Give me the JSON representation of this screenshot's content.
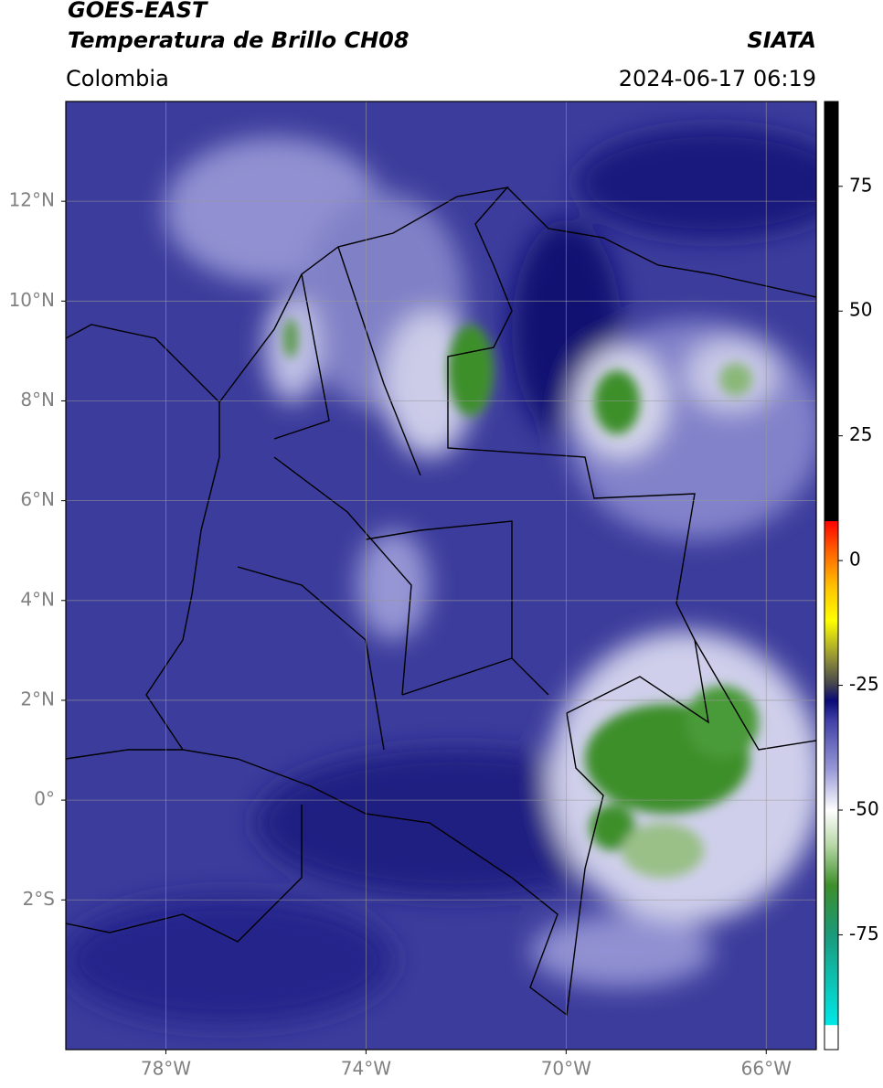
{
  "map": {
    "title": "GOES-EAST",
    "subtitle": "Temperatura de Brillo CH08",
    "region": "Colombia",
    "source": "SIATA",
    "timestamp": "2024-06-17 06:19",
    "lonlim": [
      -80,
      -65
    ],
    "latlim": [
      -5,
      14
    ],
    "xticks": [
      {
        "value": -78,
        "label": "78°W"
      },
      {
        "value": -74,
        "label": "74°W"
      },
      {
        "value": -70,
        "label": "70°W"
      },
      {
        "value": -66,
        "label": "66°W"
      }
    ],
    "yticks": [
      {
        "value": 12,
        "label": "12°N"
      },
      {
        "value": 10,
        "label": "10°N"
      },
      {
        "value": 8,
        "label": "8°N"
      },
      {
        "value": 6,
        "label": "6°N"
      },
      {
        "value": 4,
        "label": "4°N"
      },
      {
        "value": 2,
        "label": "2°N"
      },
      {
        "value": 0,
        "label": "0°"
      },
      {
        "value": -2,
        "label": "2°S"
      }
    ],
    "grid": true,
    "colorbar": {
      "lim": [
        -98,
        92
      ],
      "ticks": [
        75,
        50,
        25,
        0,
        -25,
        -50,
        -75
      ],
      "stops": [
        {
          "value": -98,
          "color": "#ffffff"
        },
        {
          "value": -93,
          "color": "#ffffff"
        },
        {
          "value": -93,
          "color": "#00e8e8"
        },
        {
          "value": -75,
          "color": "#1a9a7a"
        },
        {
          "value": -65,
          "color": "#3d8f2a"
        },
        {
          "value": -57,
          "color": "#b8d8a8"
        },
        {
          "value": -50,
          "color": "#ffffff"
        },
        {
          "value": -42,
          "color": "#9a9ad8"
        },
        {
          "value": -32,
          "color": "#4040a8"
        },
        {
          "value": -28,
          "color": "#0a0a78"
        },
        {
          "value": -25,
          "color": "#404050"
        },
        {
          "value": -20,
          "color": "#8a8a3a"
        },
        {
          "value": -12,
          "color": "#ffff00"
        },
        {
          "value": -5,
          "color": "#ffc000"
        },
        {
          "value": 2,
          "color": "#ff6000"
        },
        {
          "value": 8,
          "color": "#ff0000"
        },
        {
          "value": 8,
          "color": "#000000"
        },
        {
          "value": 92,
          "color": "#000000"
        }
      ]
    }
  }
}
